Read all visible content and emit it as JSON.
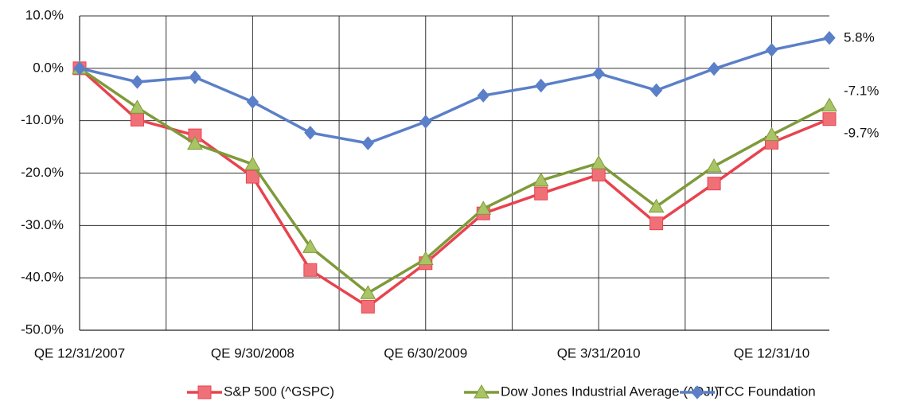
{
  "chart_data": {
    "type": "line",
    "categories": [
      "QE 12/31/2007",
      null,
      null,
      "QE 9/30/2008",
      null,
      null,
      "QE 6/30/2009",
      null,
      null,
      "QE 3/31/2010",
      null,
      null,
      "QE 12/31/10",
      null
    ],
    "series": [
      {
        "name": "S&P 500 (^GSPC)",
        "color": "#e8434f",
        "marker_color": "#f07078",
        "marker": "square",
        "values": [
          0,
          -9.8,
          -12.8,
          -20.7,
          -38.5,
          -45.5,
          -37.2,
          -27.7,
          -23.9,
          -20.3,
          -29.6,
          -22.0,
          -14.2,
          -9.7
        ],
        "end_label": "-9.7%"
      },
      {
        "name": "Dow Jones Industrial Average (^DJI)",
        "color": "#7f9a3a",
        "marker_color": "#a8c464",
        "marker": "triangle",
        "values": [
          0,
          -7.5,
          -14.4,
          -18.3,
          -34.1,
          -42.9,
          -36.4,
          -26.8,
          -21.4,
          -18.1,
          -26.4,
          -18.7,
          -12.7,
          -7.1
        ],
        "end_label": "-7.1%"
      },
      {
        "name": "TCC Foundation",
        "color": "#5b7fc8",
        "marker_color": "#5b7fc8",
        "marker": "diamond",
        "values": [
          0,
          -2.6,
          -1.7,
          -6.4,
          -12.3,
          -14.3,
          -10.2,
          -5.2,
          -3.3,
          -1.0,
          -4.2,
          -0.1,
          3.5,
          5.8
        ],
        "end_label": "5.8%"
      }
    ],
    "ylim": [
      -50,
      10
    ],
    "yticks": [
      {
        "value": -50,
        "label": "-50.0%"
      },
      {
        "value": -40,
        "label": "-40.0%"
      },
      {
        "value": -30,
        "label": "-30.0%"
      },
      {
        "value": -20,
        "label": "-20.0%"
      },
      {
        "value": -10,
        "label": "-10.0%"
      },
      {
        "value": 0,
        "label": "0.0%"
      },
      {
        "value": 10,
        "label": "10.0%"
      }
    ],
    "grid": true,
    "legend": "bottom"
  }
}
